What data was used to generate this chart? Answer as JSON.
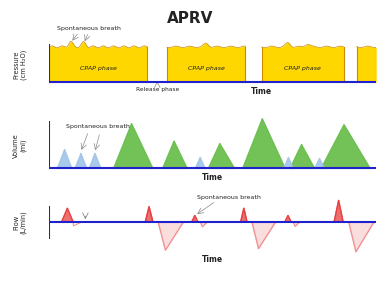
{
  "title": "APRV",
  "title_fontsize": 11,
  "title_fontweight": "bold",
  "bg_color": "#ffffff",
  "pressure_color": "#FFD700",
  "pressure_edge": "#CC8800",
  "volume_green": "#6BBF4E",
  "volume_blue": "#A0C4E8",
  "flow_red": "#E84040",
  "flow_red_light": "#F09090",
  "axis_color": "#2020CC",
  "text_color": "#222222",
  "gray": "#888888",
  "pressure_y_label": "Pressure\n(cm H₂O)",
  "volume_y_label": "Volume\n(ml)",
  "flow_y_label": "Flow\n(L/min)",
  "time_label": "Time",
  "spont_label": "Spontaneous breath",
  "release_label": "Release phase",
  "cpap_label": "CPAP phase"
}
